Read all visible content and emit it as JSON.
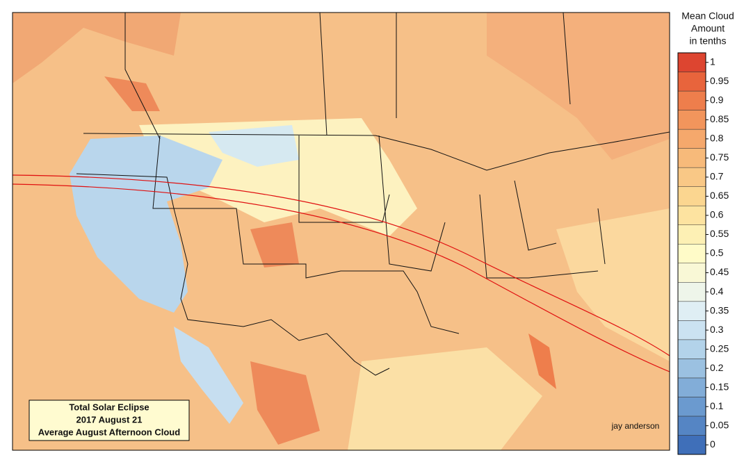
{
  "map": {
    "box": {
      "lines": [
        "Total Solar Eclipse",
        "2017 August 21",
        "Average August Afternoon Cloud"
      ]
    },
    "credit": "jay anderson"
  },
  "legend": {
    "title": [
      "Mean Cloud",
      "Amount",
      "in tenths"
    ],
    "ticks": [
      0,
      0.05,
      0.1,
      0.15,
      0.2,
      0.25,
      0.3,
      0.35,
      0.4,
      0.45,
      0.5,
      0.55,
      0.6,
      0.65,
      0.7,
      0.75,
      0.8,
      0.85,
      0.9,
      0.95,
      1
    ],
    "colors": [
      "#3f6fb9",
      "#5585c4",
      "#6b9acf",
      "#82add8",
      "#9bc1e1",
      "#b3d3ea",
      "#cbe2f1",
      "#dfeef4",
      "#eef5ea",
      "#f9f8d6",
      "#fffbc8",
      "#fdf0b4",
      "#fde3a0",
      "#fbd690",
      "#f9c886",
      "#f7ba7a",
      "#f5a86c",
      "#f2955c",
      "#ee7e4c",
      "#e8643c",
      "#dd4530"
    ]
  }
}
